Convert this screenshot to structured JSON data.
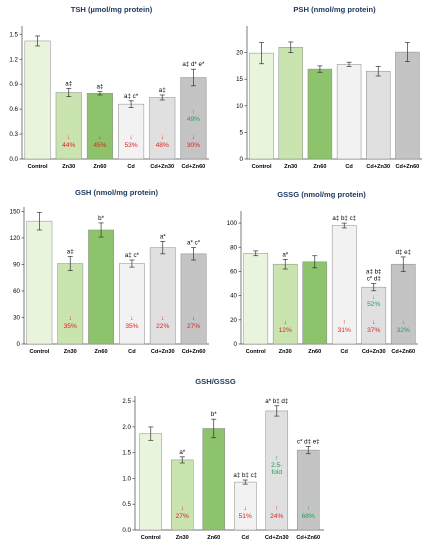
{
  "chart_data": [
    {
      "type": "bar",
      "title": "TSH (µmol/mg protein)",
      "categories": [
        "Control",
        "Zn30",
        "Zn60",
        "Cd",
        "Cd+Zn30",
        "Cd+Zn60"
      ],
      "values": [
        1.42,
        0.8,
        0.79,
        0.66,
        0.74,
        0.98
      ],
      "errors": [
        0.06,
        0.05,
        0.02,
        0.04,
        0.03,
        0.1
      ],
      "ylim": [
        0,
        1.6
      ],
      "yticks": [
        0.0,
        0.3,
        0.6,
        0.9,
        1.2,
        1.5
      ],
      "ytick_labels": [
        "0.0",
        "0.3",
        "0.6",
        "0.9",
        "1.2",
        "1.5"
      ],
      "significance": [
        "",
        "a‡",
        "a‡",
        "a‡ c*",
        "a‡",
        "a‡ d* e*"
      ],
      "annotations": [
        null,
        {
          "arrow": "↓",
          "text": "44%",
          "color": "red"
        },
        {
          "arrow": "↓",
          "text": "45%",
          "color": "red"
        },
        {
          "arrow": "↓",
          "text": "53%",
          "color": "red"
        },
        {
          "arrow": "↓",
          "text": "48%",
          "color": "red"
        },
        {
          "arrow": "↓",
          "text": "30%",
          "color": "red",
          "extra": {
            "arrow": "↑",
            "text": "49%",
            "color": "green"
          }
        }
      ]
    },
    {
      "type": "bar",
      "title": "PSH (nmol/mg protein)",
      "categories": [
        "Control",
        "Zn30",
        "Zn60",
        "Cd",
        "Cd+Zn30",
        "Cd+Zn60"
      ],
      "values": [
        19.9,
        21.0,
        16.9,
        17.8,
        16.5,
        20.1
      ],
      "errors": [
        2.0,
        1.0,
        0.6,
        0.4,
        0.9,
        1.8
      ],
      "ylim": [
        0,
        25
      ],
      "yticks": [
        0,
        5,
        10,
        15,
        20
      ],
      "ytick_labels": [
        "0",
        "5",
        "10",
        "15",
        "20"
      ],
      "significance": [
        "",
        "",
        "",
        "",
        "",
        ""
      ],
      "annotations": [
        null,
        null,
        null,
        null,
        null,
        null
      ]
    },
    {
      "type": "bar",
      "title": "GSH (nmol/mg protein)",
      "categories": [
        "Control",
        "Zn30",
        "Zn60",
        "Cd",
        "Cd+Zn30",
        "Cd+Zn60"
      ],
      "values": [
        139,
        91,
        129,
        91,
        109,
        102
      ],
      "errors": [
        10,
        8,
        8,
        4,
        7,
        7
      ],
      "ylim": [
        0,
        155
      ],
      "yticks": [
        0,
        30,
        60,
        90,
        120,
        150
      ],
      "ytick_labels": [
        "0",
        "30",
        "60",
        "90",
        "120",
        "150"
      ],
      "significance": [
        "",
        "a‡",
        "b*",
        "a‡ c*",
        "a*",
        "a* c*"
      ],
      "annotations": [
        null,
        {
          "arrow": "↓",
          "text": "35%",
          "color": "red"
        },
        null,
        {
          "arrow": "↓",
          "text": "35%",
          "color": "red"
        },
        {
          "arrow": "↓",
          "text": "22%",
          "color": "red"
        },
        {
          "arrow": "↓",
          "text": "27%",
          "color": "red"
        }
      ]
    },
    {
      "type": "bar",
      "title": "GSSG (nmol/mg protein)",
      "categories": [
        "Control",
        "Zn30",
        "Zn60",
        "Cd",
        "Cd+Zn30",
        "Cd+Zn60"
      ],
      "values": [
        75,
        66,
        68,
        98,
        47,
        66
      ],
      "errors": [
        2,
        4,
        5,
        2,
        3,
        6
      ],
      "ylim": [
        0,
        110
      ],
      "yticks": [
        0,
        20,
        40,
        60,
        80,
        100
      ],
      "ytick_labels": [
        "0",
        "20",
        "40",
        "60",
        "80",
        "100"
      ],
      "significance": [
        "",
        "a*",
        "",
        "a‡ b‡ c‡",
        "a‡ b‡ c* d‡",
        "d‡ e‡"
      ],
      "annotations": [
        null,
        {
          "arrow": "↓",
          "text": "12%",
          "color": "red"
        },
        null,
        {
          "arrow": "↑",
          "text": "31%",
          "color": "red"
        },
        {
          "arrow": "↓",
          "text": "37%",
          "color": "red",
          "extra": {
            "arrow": "↓",
            "text": "52%",
            "color": "green"
          }
        },
        {
          "arrow": "↓",
          "text": "32%",
          "color": "green"
        }
      ]
    },
    {
      "type": "bar",
      "title": "GSH/GSSG",
      "categories": [
        "Control",
        "Zn30",
        "Zn60",
        "Cd",
        "Cd+Zn30",
        "Cd+Zn60"
      ],
      "values": [
        1.87,
        1.36,
        1.97,
        0.93,
        2.31,
        1.55
      ],
      "errors": [
        0.13,
        0.06,
        0.18,
        0.04,
        0.1,
        0.07
      ],
      "ylim": [
        0,
        2.6
      ],
      "yticks": [
        0.0,
        0.5,
        1.0,
        1.5,
        2.0,
        2.5
      ],
      "ytick_labels": [
        "0.0",
        "0.5",
        "1.0",
        "1.5",
        "2.0",
        "2.5"
      ],
      "significance": [
        "",
        "a*",
        "b*",
        "a‡ b‡ c‡",
        "a* b‡ d‡",
        "c* d‡ e‡"
      ],
      "annotations": [
        null,
        {
          "arrow": "↓",
          "text": "27%",
          "color": "red"
        },
        null,
        {
          "arrow": "↓",
          "text": "51%",
          "color": "red"
        },
        {
          "arrow": "↑",
          "text": "24%",
          "color": "red",
          "extra": {
            "arrow": "↑",
            "text": "2.5-fold",
            "color": "green"
          }
        },
        {
          "arrow": "↑",
          "text": "68%",
          "color": "green"
        }
      ]
    }
  ],
  "colors": {
    "bars": [
      "#e9f4dc",
      "#c9e4ae",
      "#8dc46b",
      "#f2f2f2",
      "#e0e0e0",
      "#c4c4c4"
    ],
    "bar_stroke": "#8a8a8a",
    "error": "#333333",
    "title": "#1f3a60",
    "red": "#e02020",
    "green": "#1aa35a"
  }
}
